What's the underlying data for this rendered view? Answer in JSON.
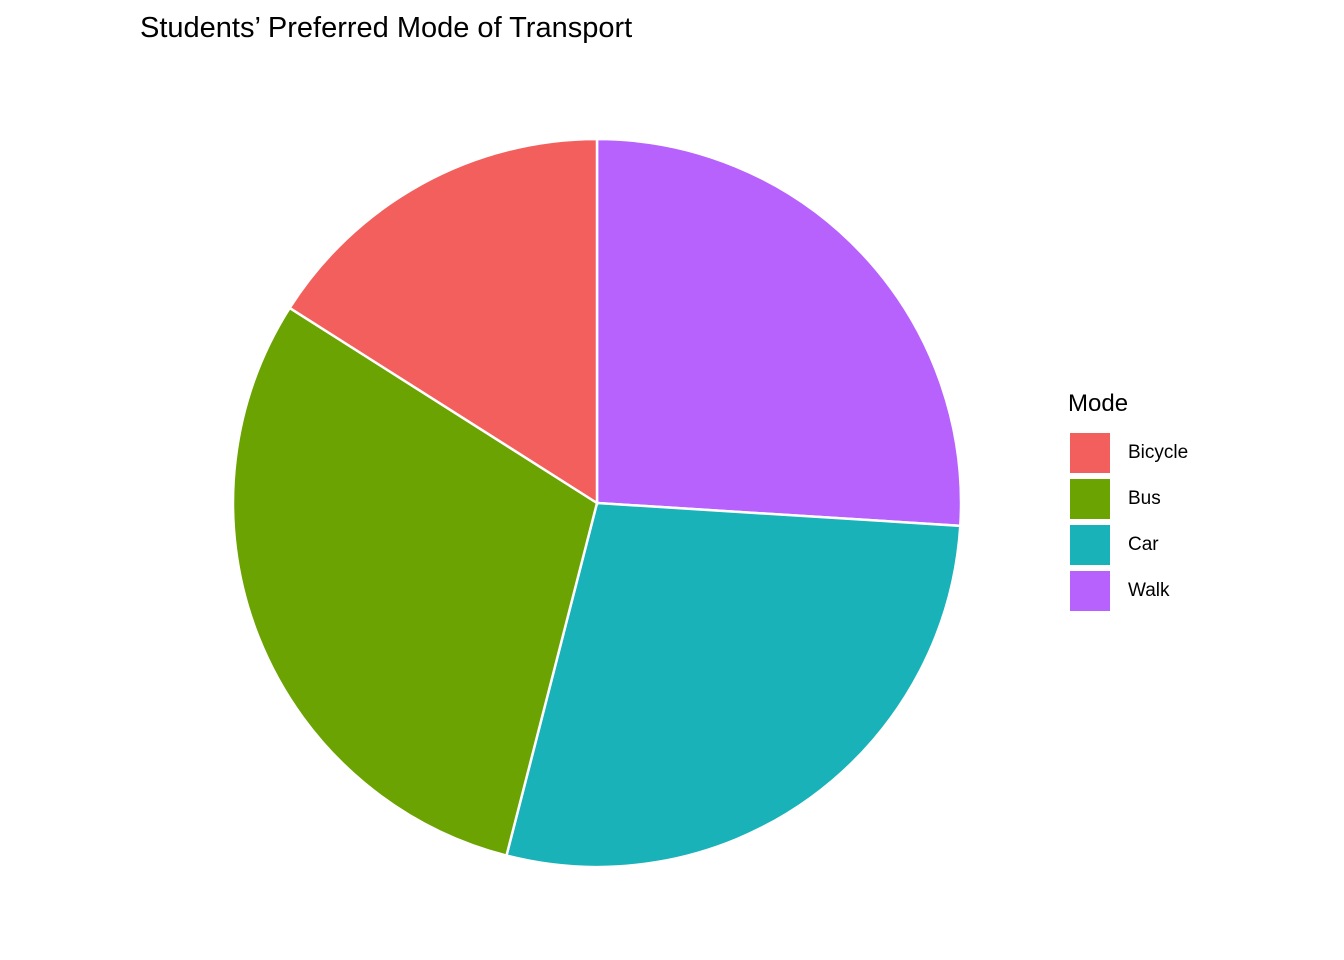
{
  "chart_data": {
    "type": "pie",
    "title": "Students’ Preferred Mode of Transport",
    "legend_title": "Mode",
    "legend_position": "right",
    "categories": [
      "Bicycle",
      "Bus",
      "Car",
      "Walk"
    ],
    "values": [
      16,
      30,
      28,
      26
    ],
    "colors": [
      "#F8766D",
      "#7CAE00",
      "#00BFC4",
      "#C77CFF"
    ],
    "draw_colors": [
      "#F35F5C",
      "#6BA303",
      "#19B2B8",
      "#B862FE"
    ]
  }
}
